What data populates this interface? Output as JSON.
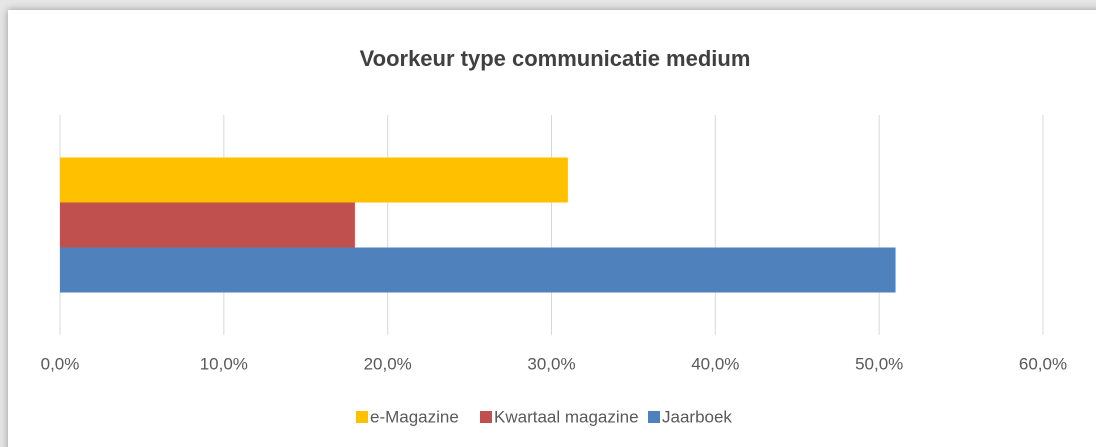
{
  "chart_data": {
    "type": "bar",
    "orientation": "horizontal",
    "title": "Voorkeur type communicatie medium",
    "categories": [
      null
    ],
    "series": [
      {
        "name": "e-Magazine",
        "color": "#ffc000",
        "values": [
          31
        ]
      },
      {
        "name": "Kwartaal magazine",
        "color": "#c0504d",
        "values": [
          18
        ]
      },
      {
        "name": "Jaarboek",
        "color": "#4f81bd",
        "values": [
          51
        ]
      }
    ],
    "xlim": [
      0,
      60
    ],
    "xticks": [
      {
        "value": 0,
        "label": "0,0%"
      },
      {
        "value": 10,
        "label": "10,0%"
      },
      {
        "value": 20,
        "label": "20,0%"
      },
      {
        "value": 30,
        "label": "30,0%"
      },
      {
        "value": 40,
        "label": "40,0%"
      },
      {
        "value": 50,
        "label": "50,0%"
      },
      {
        "value": 60,
        "label": "60,0%"
      }
    ],
    "grid": true,
    "legend": "bottom"
  }
}
